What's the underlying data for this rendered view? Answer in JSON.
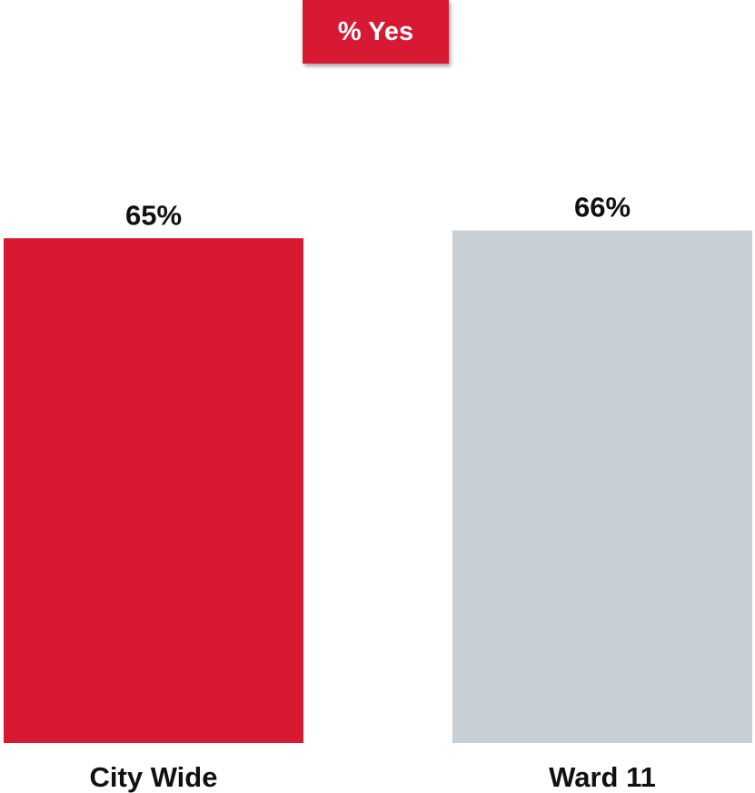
{
  "colors": {
    "accent": "#D71933",
    "secondary": "#C8D0D6"
  },
  "chart_data": {
    "type": "bar",
    "title": "% Yes",
    "categories": [
      "City Wide",
      "Ward 11"
    ],
    "values": [
      65,
      66
    ],
    "value_labels": [
      "65%",
      "66%"
    ],
    "bar_colors": [
      "#D71933",
      "#C8D0D6"
    ],
    "unit": "%",
    "ylim": [
      0,
      100
    ],
    "xlabel": "",
    "ylabel": "",
    "grid": false,
    "legend": "none"
  }
}
